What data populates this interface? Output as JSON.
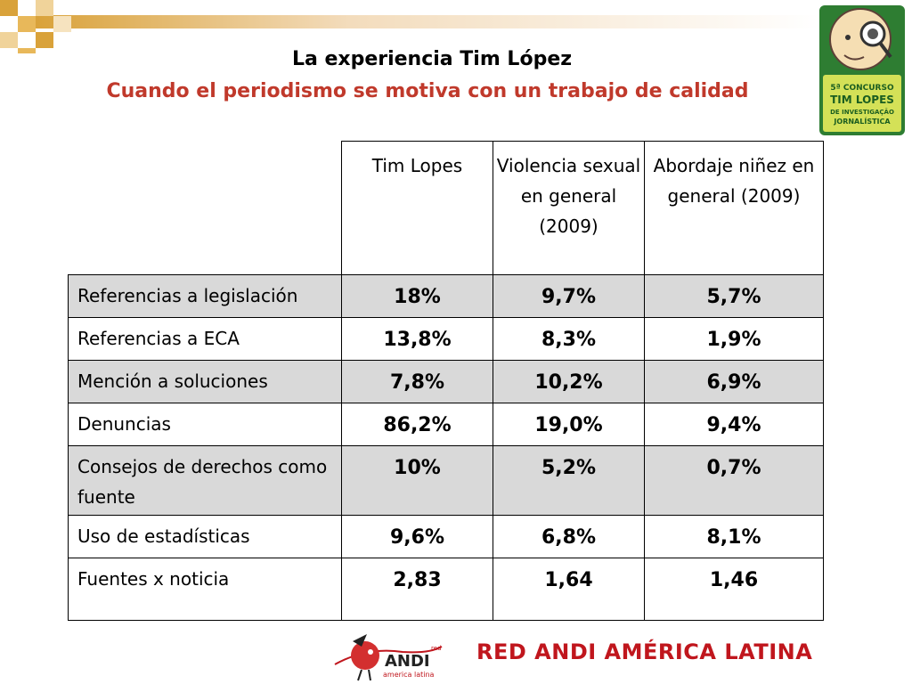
{
  "header": {
    "title": "La experiencia Tim López",
    "subtitle": "Cuando el periodismo se motiva con un trabajo de calidad",
    "subtitle_color": "#c0392b"
  },
  "logo_top_right": {
    "icon": "tim-lopes-contest-logo",
    "lines": [
      "5ª CONCURSO",
      "TIM LOPES",
      "DE INVESTIGAÇÃO",
      "JORNALÍSTICA"
    ]
  },
  "table": {
    "columns": [
      "Tim Lopes",
      "Violencia sexual en general (2009)",
      "Abordaje niñez en general (2009)"
    ],
    "rows": [
      {
        "label": "Referencias a legislación",
        "values": [
          "18%",
          "9,7%",
          "5,7%"
        ]
      },
      {
        "label": "Referencias a ECA",
        "values": [
          "13,8%",
          "8,3%",
          "1,9%"
        ]
      },
      {
        "label": "Mención a soluciones",
        "values": [
          "7,8%",
          "10,2%",
          "6,9%"
        ]
      },
      {
        "label": "Denuncias",
        "values": [
          "86,2%",
          "19,0%",
          "9,4%"
        ]
      },
      {
        "label": "Consejos de derechos como fuente",
        "values": [
          "10%",
          "5,2%",
          "0,7%"
        ]
      },
      {
        "label": "Uso de estadísticas",
        "values": [
          "9,6%",
          "6,8%",
          "8,1%"
        ]
      },
      {
        "label": "Fuentes x noticia",
        "values": [
          "2,83",
          "1,64",
          "1,46"
        ]
      }
    ]
  },
  "footer": {
    "text": "RED ANDI AMÉRICA LATINA",
    "text_color": "#c0161d",
    "logo": {
      "icon": "red-andi-bird-logo",
      "red": "red",
      "andi": "ANDI",
      "america": "america latina"
    }
  }
}
